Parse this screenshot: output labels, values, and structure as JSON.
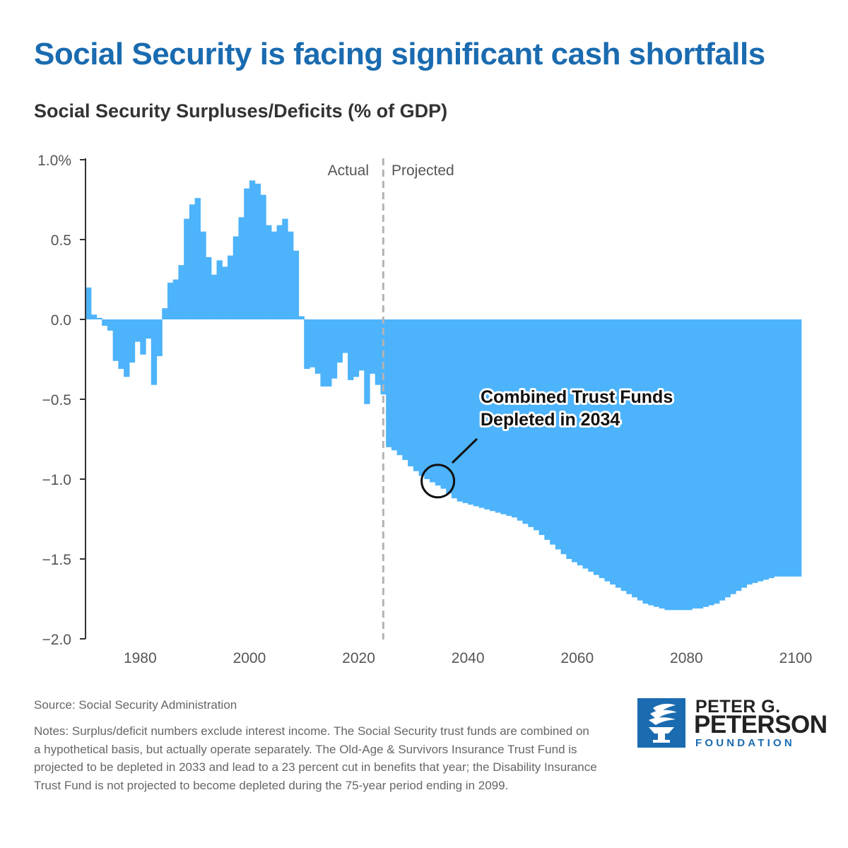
{
  "title": "Social Security is facing significant cash shortfalls",
  "subtitle": "Social Security Surpluses/Deficits (% of GDP)",
  "source": "Source: Social Security Administration",
  "notes": "Notes: Surplus/deficit numbers exclude interest income. The Social Security trust funds are combined on a hypothetical basis, but actually operate separately. The Old-Age & Survivors Insurance Trust Fund is projected to be depleted in 2033 and lead to a 23 percent cut in benefits that year; the Disability Insurance Trust Fund is not projected to become depleted during the 75-year period ending in 2099.",
  "logo": {
    "line1": "PETER G.",
    "line2": "PETERSON",
    "line3": "FOUNDATION"
  },
  "colors": {
    "title": "#1a6bb0",
    "bar": "#4db3fa",
    "axis": "#333333",
    "divider": "#b3b3b3"
  },
  "chart_data": {
    "type": "bar",
    "title": "Social Security Surpluses/Deficits (% of GDP)",
    "xlabel": "",
    "ylabel": "",
    "xlim": [
      1970,
      2100
    ],
    "ylim": [
      -2.0,
      1.0
    ],
    "y_ticks": [
      1.0,
      0.5,
      0.0,
      -0.5,
      -1.0,
      -1.5,
      -2.0
    ],
    "y_tick_labels": [
      "1.0%",
      "0.5",
      "0.0",
      "−0.5",
      "−1.0",
      "−1.5",
      "−2.0"
    ],
    "x_ticks": [
      1980,
      2000,
      2020,
      2040,
      2060,
      2080,
      2100
    ],
    "x_tick_labels": [
      "1980",
      "2000",
      "2020",
      "2040",
      "2060",
      "2080",
      "2100"
    ],
    "divider_year": 2024.5,
    "region_labels": {
      "actual": "Actual",
      "projected": "Projected"
    },
    "annotation": {
      "line1": "Combined Trust Funds",
      "line2": "Depleted in 2034",
      "year": 2034,
      "value": -1.03
    },
    "series": [
      {
        "name": "Actual",
        "start_year": 1970,
        "values": [
          0.2,
          0.03,
          0.01,
          -0.04,
          -0.07,
          -0.26,
          -0.31,
          -0.36,
          -0.27,
          -0.14,
          -0.22,
          -0.12,
          -0.41,
          -0.23,
          0.07,
          0.23,
          0.25,
          0.34,
          0.63,
          0.72,
          0.76,
          0.55,
          0.39,
          0.28,
          0.37,
          0.33,
          0.4,
          0.52,
          0.64,
          0.82,
          0.87,
          0.85,
          0.78,
          0.59,
          0.55,
          0.59,
          0.63,
          0.55,
          0.43,
          0.02,
          -0.31,
          -0.3,
          -0.34,
          -0.42,
          -0.42,
          -0.37,
          -0.27,
          -0.21,
          -0.38,
          -0.36,
          -0.32,
          -0.53,
          -0.34,
          -0.41,
          -0.47
        ]
      },
      {
        "name": "Projected",
        "start_year": 2025,
        "values": [
          -0.8,
          -0.82,
          -0.85,
          -0.88,
          -0.92,
          -0.95,
          -0.98,
          -1.0,
          -1.02,
          -1.04,
          -1.06,
          -1.09,
          -1.12,
          -1.14,
          -1.15,
          -1.16,
          -1.17,
          -1.18,
          -1.19,
          -1.2,
          -1.21,
          -1.22,
          -1.23,
          -1.24,
          -1.26,
          -1.28,
          -1.3,
          -1.32,
          -1.35,
          -1.38,
          -1.41,
          -1.44,
          -1.47,
          -1.5,
          -1.52,
          -1.54,
          -1.56,
          -1.58,
          -1.6,
          -1.62,
          -1.64,
          -1.66,
          -1.68,
          -1.7,
          -1.72,
          -1.74,
          -1.76,
          -1.78,
          -1.79,
          -1.8,
          -1.81,
          -1.82,
          -1.82,
          -1.82,
          -1.82,
          -1.82,
          -1.81,
          -1.81,
          -1.8,
          -1.79,
          -1.78,
          -1.76,
          -1.74,
          -1.72,
          -1.7,
          -1.68,
          -1.66,
          -1.65,
          -1.64,
          -1.63,
          -1.62,
          -1.61,
          -1.61,
          -1.61,
          -1.61,
          -1.61
        ]
      }
    ]
  }
}
